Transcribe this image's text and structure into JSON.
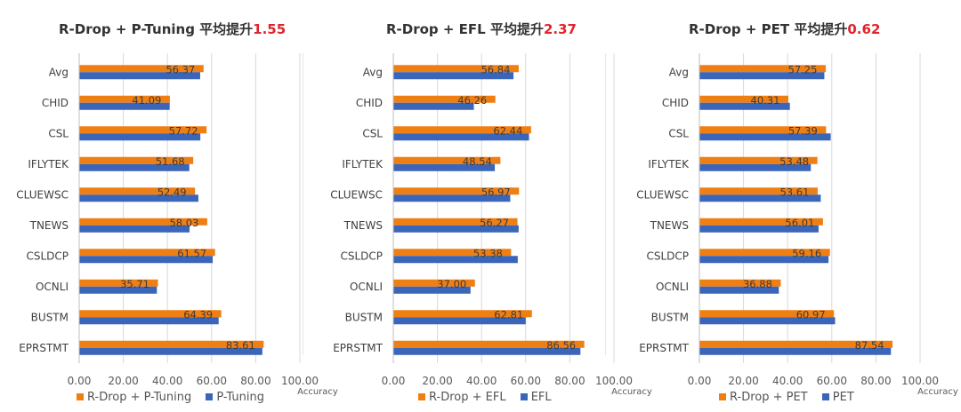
{
  "chart_data": [
    {
      "type": "bar",
      "title": "R-Drop + P-Tuning 平均提升",
      "title_gain": "1.55",
      "categories": [
        "Avg",
        "CHID",
        "CSL",
        "IFLYTEK",
        "CLUEWSC",
        "TNEWS",
        "CSLDCP",
        "OCNLI",
        "BUSTM",
        "EPRSTMT"
      ],
      "series": [
        {
          "name": "R-Drop + P-Tuning",
          "color": "#f07f13",
          "values": [
            56.37,
            41.09,
            57.72,
            51.68,
            52.49,
            58.03,
            61.57,
            35.71,
            64.39,
            83.61
          ],
          "labels": [
            "56.37",
            "41.09",
            "57.72",
            "51.68",
            "52.49",
            "58.03",
            "61.57",
            "35.71",
            "64.39",
            "83.61"
          ]
        },
        {
          "name": "P-Tuning",
          "color": "#3a65b8",
          "values": [
            54.82,
            41.0,
            54.9,
            49.9,
            54.0,
            50.0,
            60.5,
            35.2,
            63.2,
            83.0
          ]
        }
      ],
      "xlabel": "Accuracy",
      "xlim": [
        0,
        100
      ],
      "xticks": [
        "0.00",
        "20.00",
        "40.00",
        "60.00",
        "80.00",
        "100.00"
      ],
      "legend": "bottom"
    },
    {
      "type": "bar",
      "title": "R-Drop + EFL 平均提升",
      "title_gain": "2.37",
      "categories": [
        "Avg",
        "CHID",
        "CSL",
        "IFLYTEK",
        "CLUEWSC",
        "TNEWS",
        "CSLDCP",
        "OCNLI",
        "BUSTM",
        "EPRSTMT"
      ],
      "series": [
        {
          "name": "R-Drop + EFL",
          "color": "#f07f13",
          "values": [
            56.84,
            46.26,
            62.44,
            48.54,
            56.97,
            56.27,
            53.38,
            37.0,
            62.81,
            86.56
          ],
          "labels": [
            "56.84",
            "46.26",
            "62.44",
            "48.54",
            "56.97",
            "56.27",
            "53.38",
            "37.00",
            "62.81",
            "86.56"
          ]
        },
        {
          "name": "EFL",
          "color": "#3a65b8",
          "values": [
            54.47,
            36.5,
            61.5,
            46.0,
            53.0,
            56.8,
            56.4,
            35.0,
            60.0,
            84.8
          ]
        }
      ],
      "xlabel": "Accuracy",
      "xlim": [
        0,
        100
      ],
      "xticks": [
        "0.00",
        "20.00",
        "40.00",
        "60.00",
        "80.00",
        "100.00"
      ],
      "legend": "bottom"
    },
    {
      "type": "bar",
      "title": "R-Drop + PET 平均提升",
      "title_gain": "0.62",
      "categories": [
        "Avg",
        "CHID",
        "CSL",
        "IFLYTEK",
        "CLUEWSC",
        "TNEWS",
        "CSLDCP",
        "OCNLI",
        "BUSTM",
        "EPRSTMT"
      ],
      "series": [
        {
          "name": "R-Drop + PET",
          "color": "#f07f13",
          "values": [
            57.25,
            40.31,
            57.39,
            53.48,
            53.61,
            56.01,
            59.16,
            36.88,
            60.97,
            87.54
          ],
          "labels": [
            "57.25",
            "40.31",
            "57.39",
            "53.48",
            "53.61",
            "56.01",
            "59.16",
            "36.88",
            "60.97",
            "87.54"
          ]
        },
        {
          "name": "PET",
          "color": "#3a65b8",
          "values": [
            56.63,
            41.0,
            59.5,
            50.5,
            55.0,
            54.0,
            58.5,
            36.0,
            61.5,
            86.8
          ]
        }
      ],
      "xlabel": "Accuracy",
      "xlim": [
        0,
        100
      ],
      "xticks": [
        "0.00",
        "20.00",
        "40.00",
        "60.00",
        "80.00",
        "100.00"
      ],
      "legend": "bottom"
    }
  ]
}
